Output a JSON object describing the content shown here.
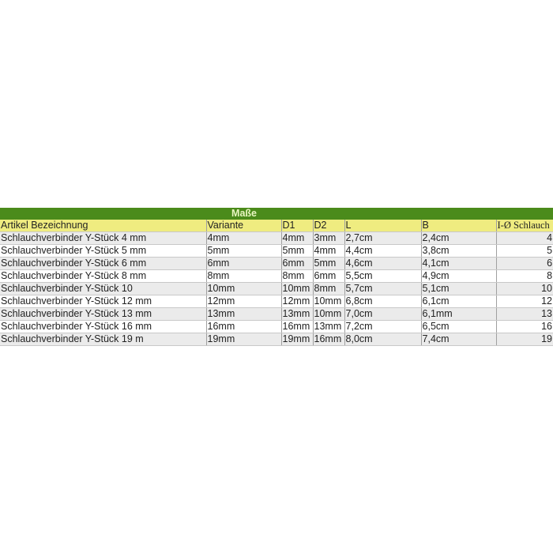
{
  "group_header": "Maße",
  "headers": [
    "Artikel Bezeichnung",
    "Variante",
    "D1",
    "D2",
    "L",
    "B",
    "I-Ø Schlauch"
  ],
  "rows": [
    [
      "Schlauchverbinder Y-Stück 4 mm",
      "4mm",
      "4mm",
      "3mm",
      "2,7cm",
      "2,4cm",
      "4"
    ],
    [
      "Schlauchverbinder Y-Stück 5 mm",
      "5mm",
      "5mm",
      "4mm",
      "4,4cm",
      "3,8cm",
      "5"
    ],
    [
      "Schlauchverbinder Y-Stück 6 mm",
      "6mm",
      "6mm",
      "5mm",
      "4,6cm",
      "4,1cm",
      "6"
    ],
    [
      "Schlauchverbinder Y-Stück 8 mm",
      "8mm",
      "8mm",
      "6mm",
      "5,5cm",
      "4,9cm",
      "8"
    ],
    [
      "Schlauchverbinder Y-Stück 10",
      "10mm",
      "10mm",
      "8mm",
      "5,7cm",
      "5,1cm",
      "10"
    ],
    [
      "Schlauchverbinder Y-Stück 12 mm",
      "12mm",
      "12mm",
      "10mm",
      "6,8cm",
      "6,1cm",
      "12"
    ],
    [
      "Schlauchverbinder Y-Stück 13 mm",
      "13mm",
      "13mm",
      "10mm",
      "7,0cm",
      "6,1mm",
      "13"
    ],
    [
      "Schlauchverbinder Y-Stück 16 mm",
      "16mm",
      "16mm",
      "13mm",
      "7,2cm",
      "6,5cm",
      "16"
    ],
    [
      "Schlauchverbinder Y-Stück 19 m",
      "19mm",
      "19mm",
      "16mm",
      "8,0cm",
      "7,4cm",
      "19"
    ]
  ],
  "colors": {
    "header_green": "#4b8b1b",
    "header_yellow": "#efec80",
    "row_alt": "#ebebeb"
  }
}
